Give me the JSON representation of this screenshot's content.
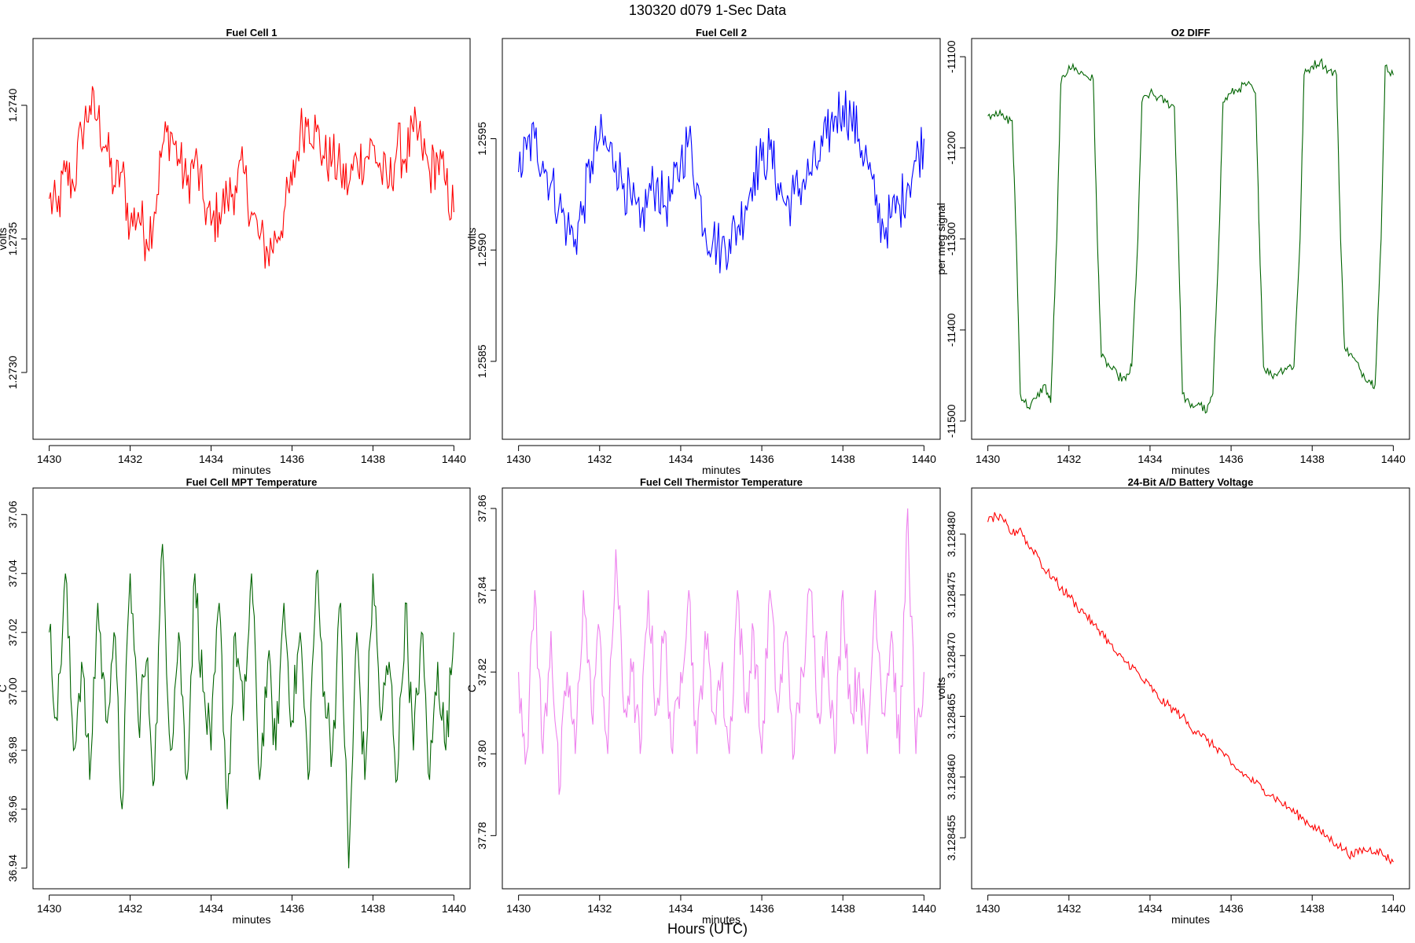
{
  "title": "130320   d079   1-Sec Data",
  "global_xlabel": "Hours (UTC)",
  "chart_data": [
    {
      "type": "line",
      "title": "Fuel Cell 1",
      "xlabel": "minutes",
      "ylabel": "volts",
      "color": "#ff0000",
      "xlim": [
        1429.6,
        1440.4
      ],
      "ylim": [
        1.27275,
        1.27425
      ],
      "xticks": [
        1430,
        1432,
        1434,
        1436,
        1438,
        1440
      ],
      "xtick_labels": [
        "1430",
        "1432",
        "1434",
        "1436",
        "1438",
        "1440"
      ],
      "yticks": [
        1.273,
        1.2735,
        1.274
      ],
      "ytick_labels": [
        "1.2730",
        "1.2735",
        "1.2740"
      ],
      "x": [
        1430.0,
        1430.2,
        1430.4,
        1430.6,
        1430.8,
        1431.0,
        1431.2,
        1431.4,
        1431.6,
        1431.8,
        1432.0,
        1432.2,
        1432.4,
        1432.6,
        1432.8,
        1433.0,
        1433.2,
        1433.4,
        1433.6,
        1433.8,
        1434.0,
        1434.2,
        1434.4,
        1434.6,
        1434.8,
        1435.0,
        1435.2,
        1435.4,
        1435.6,
        1435.8,
        1436.0,
        1436.2,
        1436.4,
        1436.6,
        1436.8,
        1437.0,
        1437.2,
        1437.4,
        1437.6,
        1437.8,
        1438.0,
        1438.2,
        1438.4,
        1438.6,
        1438.8,
        1439.0,
        1439.2,
        1439.4,
        1439.6,
        1439.8,
        1440.0
      ],
      "values": [
        1.27365,
        1.2736,
        1.27375,
        1.2737,
        1.2739,
        1.274,
        1.27395,
        1.27385,
        1.2737,
        1.27375,
        1.27355,
        1.2736,
        1.2735,
        1.2736,
        1.27385,
        1.2739,
        1.2738,
        1.2737,
        1.2738,
        1.27365,
        1.27355,
        1.2736,
        1.27365,
        1.2737,
        1.27375,
        1.2736,
        1.2735,
        1.27345,
        1.2735,
        1.2736,
        1.2737,
        1.2739,
        1.27395,
        1.2739,
        1.2738,
        1.2738,
        1.27375,
        1.2737,
        1.2738,
        1.2738,
        1.27385,
        1.27375,
        1.2737,
        1.27385,
        1.2738,
        1.2739,
        1.27385,
        1.27375,
        1.2738,
        1.2737,
        1.2736
      ]
    },
    {
      "type": "line",
      "title": "Fuel Cell 2",
      "xlabel": "minutes",
      "ylabel": "volts",
      "color": "#0000ff",
      "xlim": [
        1429.6,
        1440.4
      ],
      "ylim": [
        1.25815,
        1.25995
      ],
      "xticks": [
        1430,
        1432,
        1434,
        1436,
        1438,
        1440
      ],
      "xtick_labels": [
        "1430",
        "1432",
        "1434",
        "1436",
        "1438",
        "1440"
      ],
      "yticks": [
        1.2585,
        1.259,
        1.2595
      ],
      "ytick_labels": [
        "1.2585",
        "1.2590",
        "1.2595"
      ],
      "x": [
        1430.0,
        1430.2,
        1430.4,
        1430.6,
        1430.8,
        1431.0,
        1431.2,
        1431.4,
        1431.6,
        1431.8,
        1432.0,
        1432.2,
        1432.4,
        1432.6,
        1432.8,
        1433.0,
        1433.2,
        1433.4,
        1433.6,
        1433.8,
        1434.0,
        1434.2,
        1434.4,
        1434.6,
        1434.8,
        1435.0,
        1435.2,
        1435.4,
        1435.6,
        1435.8,
        1436.0,
        1436.2,
        1436.4,
        1436.6,
        1436.8,
        1437.0,
        1437.2,
        1437.4,
        1437.6,
        1437.8,
        1438.0,
        1438.2,
        1438.4,
        1438.6,
        1438.8,
        1439.0,
        1439.2,
        1439.4,
        1439.6,
        1439.8,
        1440.0
      ],
      "values": [
        1.25935,
        1.25945,
        1.2595,
        1.2594,
        1.2593,
        1.2592,
        1.2591,
        1.25905,
        1.2592,
        1.2594,
        1.2595,
        1.25945,
        1.2594,
        1.2593,
        1.2592,
        1.2591,
        1.25925,
        1.2593,
        1.2592,
        1.25925,
        1.2594,
        1.2595,
        1.2593,
        1.2591,
        1.25905,
        1.259,
        1.25905,
        1.2591,
        1.2592,
        1.25935,
        1.2594,
        1.25945,
        1.2593,
        1.2592,
        1.25925,
        1.2593,
        1.25935,
        1.2594,
        1.2595,
        1.2596,
        1.25965,
        1.2596,
        1.2595,
        1.2594,
        1.2592,
        1.2591,
        1.25915,
        1.2592,
        1.2593,
        1.2594,
        1.2595
      ]
    },
    {
      "type": "line",
      "title": "O2 DIFF",
      "xlabel": "minutes",
      "ylabel": "per meg signal",
      "color": "#006400",
      "xlim": [
        1429.6,
        1440.4
      ],
      "ylim": [
        -11520,
        -11080
      ],
      "xticks": [
        1430,
        1432,
        1434,
        1436,
        1438,
        1440
      ],
      "xtick_labels": [
        "1430",
        "1432",
        "1434",
        "1436",
        "1438",
        "1440"
      ],
      "yticks": [
        -11500,
        -11400,
        -11300,
        -11200,
        -11100
      ],
      "ytick_labels": [
        "-11500",
        "-11400",
        "-11300",
        "-11200",
        "-11100"
      ],
      "x": [
        1430.0,
        1430.2,
        1430.4,
        1430.6,
        1430.7,
        1430.8,
        1431.0,
        1431.2,
        1431.4,
        1431.55,
        1431.7,
        1431.8,
        1432.0,
        1432.2,
        1432.4,
        1432.6,
        1432.7,
        1432.8,
        1433.0,
        1433.2,
        1433.4,
        1433.55,
        1433.7,
        1433.8,
        1434.0,
        1434.2,
        1434.4,
        1434.6,
        1434.7,
        1434.8,
        1435.0,
        1435.2,
        1435.4,
        1435.55,
        1435.7,
        1435.8,
        1436.0,
        1436.2,
        1436.4,
        1436.6,
        1436.7,
        1436.8,
        1437.0,
        1437.2,
        1437.4,
        1437.55,
        1437.7,
        1437.8,
        1438.0,
        1438.2,
        1438.4,
        1438.6,
        1438.7,
        1438.8,
        1439.0,
        1439.2,
        1439.4,
        1439.55,
        1439.7,
        1439.8,
        1440.0
      ],
      "values": [
        -11165,
        -11160,
        -11168,
        -11170,
        -11300,
        -11470,
        -11485,
        -11475,
        -11460,
        -11480,
        -11300,
        -11130,
        -11110,
        -11115,
        -11120,
        -11125,
        -11300,
        -11430,
        -11440,
        -11450,
        -11455,
        -11440,
        -11300,
        -11150,
        -11140,
        -11145,
        -11150,
        -11155,
        -11300,
        -11470,
        -11485,
        -11480,
        -11490,
        -11470,
        -11300,
        -11150,
        -11140,
        -11135,
        -11130,
        -11140,
        -11300,
        -11440,
        -11450,
        -11445,
        -11440,
        -11440,
        -11300,
        -11120,
        -11110,
        -11105,
        -11115,
        -11120,
        -11300,
        -11420,
        -11430,
        -11445,
        -11455,
        -11460,
        -11300,
        -11110,
        -11120
      ]
    },
    {
      "type": "line",
      "title": "Fuel Cell MPT Temperature",
      "xlabel": "minutes",
      "ylabel": "C",
      "color": "#006400",
      "xlim": [
        1429.6,
        1440.4
      ],
      "ylim": [
        36.933,
        37.069
      ],
      "xticks": [
        1430,
        1432,
        1434,
        1436,
        1438,
        1440
      ],
      "xtick_labels": [
        "1430",
        "1432",
        "1434",
        "1436",
        "1438",
        "1440"
      ],
      "yticks": [
        36.94,
        36.96,
        36.98,
        37.0,
        37.02,
        37.04,
        37.06
      ],
      "ytick_labels": [
        "36.94",
        "36.96",
        "36.98",
        "37.00",
        "37.02",
        "37.04",
        "37.06"
      ],
      "x": [
        1430.0,
        1430.2,
        1430.4,
        1430.6,
        1430.8,
        1431.0,
        1431.2,
        1431.4,
        1431.6,
        1431.8,
        1432.0,
        1432.2,
        1432.4,
        1432.6,
        1432.8,
        1433.0,
        1433.2,
        1433.4,
        1433.6,
        1433.8,
        1434.0,
        1434.2,
        1434.4,
        1434.6,
        1434.8,
        1435.0,
        1435.2,
        1435.4,
        1435.6,
        1435.8,
        1436.0,
        1436.2,
        1436.4,
        1436.6,
        1436.8,
        1437.0,
        1437.2,
        1437.4,
        1437.6,
        1437.8,
        1438.0,
        1438.2,
        1438.4,
        1438.6,
        1438.8,
        1439.0,
        1439.2,
        1439.4,
        1439.6,
        1439.8,
        1440.0
      ],
      "values": [
        37.02,
        36.99,
        37.04,
        36.98,
        37.01,
        36.97,
        37.03,
        36.99,
        37.02,
        36.96,
        37.04,
        36.99,
        37.01,
        36.97,
        37.05,
        36.98,
        37.02,
        36.97,
        37.04,
        37.0,
        36.98,
        37.03,
        36.96,
        37.02,
        36.99,
        37.04,
        36.97,
        37.01,
        36.98,
        37.03,
        36.99,
        37.02,
        36.97,
        37.04,
        37.0,
        36.98,
        37.03,
        36.94,
        37.02,
        36.97,
        37.04,
        36.99,
        37.01,
        36.97,
        37.03,
        36.98,
        37.02,
        36.97,
        37.01,
        36.98,
        37.02
      ]
    },
    {
      "type": "line",
      "title": "Fuel Cell Thermistor Temperature",
      "xlabel": "minutes",
      "ylabel": "C",
      "color": "#ee82ee",
      "xlim": [
        1429.6,
        1440.4
      ],
      "ylim": [
        37.767,
        37.865
      ],
      "xticks": [
        1430,
        1432,
        1434,
        1436,
        1438,
        1440
      ],
      "xtick_labels": [
        "1430",
        "1432",
        "1434",
        "1436",
        "1438",
        "1440"
      ],
      "yticks": [
        37.78,
        37.8,
        37.82,
        37.84,
        37.86
      ],
      "ytick_labels": [
        "37.78",
        "37.80",
        "37.82",
        "37.84",
        "37.86"
      ],
      "x": [
        1430.0,
        1430.2,
        1430.4,
        1430.6,
        1430.8,
        1431.0,
        1431.2,
        1431.4,
        1431.6,
        1431.8,
        1432.0,
        1432.2,
        1432.4,
        1432.6,
        1432.8,
        1433.0,
        1433.2,
        1433.4,
        1433.6,
        1433.8,
        1434.0,
        1434.2,
        1434.4,
        1434.6,
        1434.8,
        1435.0,
        1435.2,
        1435.4,
        1435.6,
        1435.8,
        1436.0,
        1436.2,
        1436.4,
        1436.6,
        1436.8,
        1437.0,
        1437.2,
        1437.4,
        1437.6,
        1437.8,
        1438.0,
        1438.2,
        1438.4,
        1438.6,
        1438.8,
        1439.0,
        1439.2,
        1439.4,
        1439.6,
        1439.8,
        1440.0
      ],
      "values": [
        37.82,
        37.8,
        37.84,
        37.8,
        37.83,
        37.79,
        37.82,
        37.8,
        37.84,
        37.81,
        37.83,
        37.8,
        37.85,
        37.81,
        37.82,
        37.8,
        37.84,
        37.81,
        37.83,
        37.8,
        37.82,
        37.84,
        37.8,
        37.83,
        37.81,
        37.82,
        37.8,
        37.84,
        37.81,
        37.83,
        37.8,
        37.84,
        37.81,
        37.83,
        37.8,
        37.82,
        37.84,
        37.81,
        37.83,
        37.8,
        37.84,
        37.81,
        37.82,
        37.8,
        37.84,
        37.81,
        37.83,
        37.8,
        37.86,
        37.8,
        37.82
      ]
    },
    {
      "type": "line",
      "title": "24-Bit A/D Battery Voltage",
      "xlabel": "minutes",
      "ylabel": "volts",
      "color": "#ff0000",
      "xlim": [
        1429.6,
        1440.4
      ],
      "ylim": [
        3.1284508,
        3.1284838
      ],
      "xticks": [
        1430,
        1432,
        1434,
        1436,
        1438,
        1440
      ],
      "xtick_labels": [
        "1430",
        "1432",
        "1434",
        "1436",
        "1438",
        "1440"
      ],
      "yticks": [
        3.128455,
        3.12846,
        3.128465,
        3.12847,
        3.128475,
        3.12848
      ],
      "ytick_labels": [
        "3.128455",
        "3.128460",
        "3.128465",
        "3.128470",
        "3.128475",
        "3.128480"
      ],
      "x": [
        1430.0,
        1430.2,
        1430.4,
        1430.6,
        1430.8,
        1431.0,
        1431.2,
        1431.4,
        1431.6,
        1431.8,
        1432.0,
        1432.2,
        1432.4,
        1432.6,
        1432.8,
        1433.0,
        1433.2,
        1433.4,
        1433.6,
        1433.8,
        1434.0,
        1434.2,
        1434.4,
        1434.6,
        1434.8,
        1435.0,
        1435.2,
        1435.4,
        1435.6,
        1435.8,
        1436.0,
        1436.2,
        1436.4,
        1436.6,
        1436.8,
        1437.0,
        1437.2,
        1437.4,
        1437.6,
        1437.8,
        1438.0,
        1438.2,
        1438.4,
        1438.6,
        1438.8,
        1439.0,
        1439.2,
        1439.4,
        1439.6,
        1439.8,
        1440.0
      ],
      "values": [
        3.128481,
        3.1284815,
        3.128481,
        3.12848,
        3.1284805,
        3.128479,
        3.1284785,
        3.128477,
        3.1284765,
        3.1284755,
        3.128475,
        3.128474,
        3.1284735,
        3.1284725,
        3.128472,
        3.128471,
        3.12847,
        3.1284695,
        3.128469,
        3.128468,
        3.1284675,
        3.1284665,
        3.128466,
        3.1284655,
        3.128465,
        3.128464,
        3.1284638,
        3.128463,
        3.1284625,
        3.128462,
        3.128461,
        3.1284605,
        3.12846,
        3.1284595,
        3.128459,
        3.1284585,
        3.128458,
        3.1284575,
        3.128457,
        3.1284565,
        3.128456,
        3.1284555,
        3.128455,
        3.1284545,
        3.128454,
        3.1284535,
        3.128454,
        3.128454,
        3.128454,
        3.1284535,
        3.128453
      ]
    }
  ]
}
